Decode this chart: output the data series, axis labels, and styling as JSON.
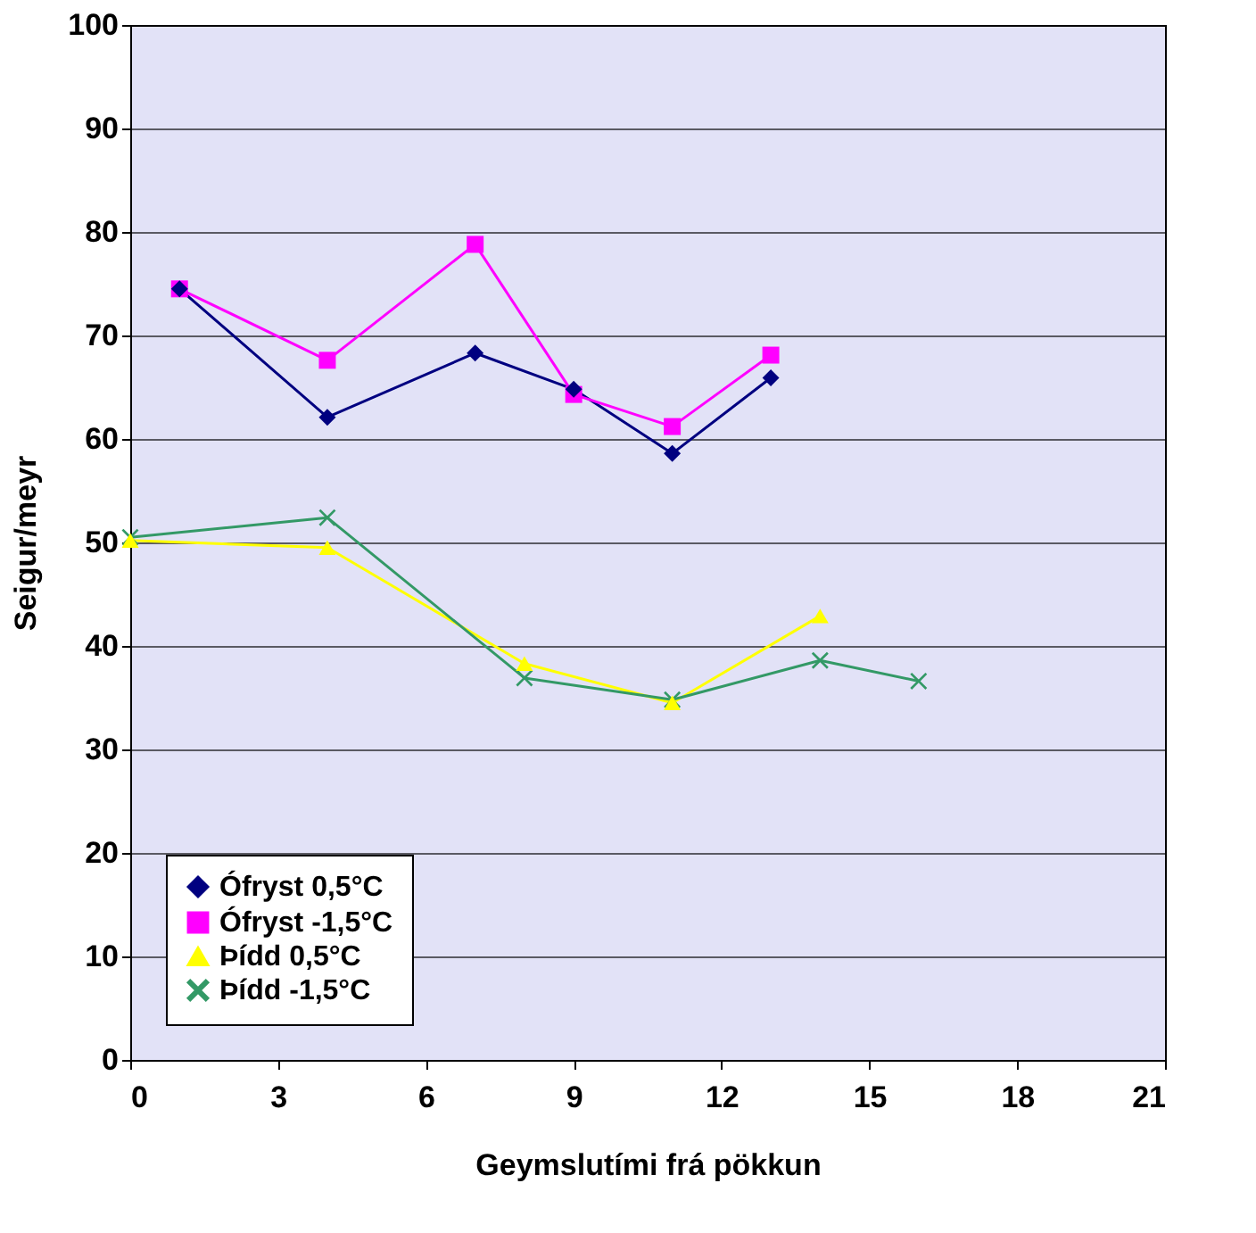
{
  "chart_data": {
    "type": "line",
    "xlabel": "Geymslutími frá pökkun",
    "ylabel": "Seigur/meyr",
    "xlim": [
      0,
      21
    ],
    "xticks": [
      0,
      3,
      6,
      9,
      12,
      15,
      18,
      21
    ],
    "ylim": [
      0,
      100
    ],
    "yticks": [
      0,
      10,
      20,
      30,
      40,
      50,
      60,
      70,
      80,
      90,
      100
    ],
    "grid": "y",
    "legend": "bottom left",
    "line_style": "solid",
    "series": [
      {
        "name": "Ófryst 0,5°C",
        "color": "#000080",
        "marker": "diamond",
        "x": [
          1,
          4,
          7,
          9,
          11,
          13
        ],
        "values": [
          74.5,
          62.1,
          68.3,
          64.8,
          58.6,
          65.9
        ]
      },
      {
        "name": "Ófryst -1,5°C",
        "color": "#ff00ff",
        "marker": "square",
        "x": [
          1,
          4,
          7,
          9,
          11,
          13
        ],
        "values": [
          74.5,
          67.6,
          78.8,
          64.3,
          61.2,
          68.1
        ]
      },
      {
        "name": "Þídd 0,5°C",
        "color": "#ffff00",
        "marker": "triangle",
        "x": [
          0,
          4,
          8,
          11,
          14
        ],
        "values": [
          50.2,
          49.5,
          38.3,
          34.5,
          42.9
        ]
      },
      {
        "name": "Þídd -1,5°C",
        "color": "#339966",
        "marker": "cross",
        "x": [
          0,
          4,
          8,
          11,
          14,
          16
        ],
        "values": [
          50.5,
          52.4,
          36.9,
          34.8,
          38.6,
          36.6
        ]
      }
    ]
  }
}
